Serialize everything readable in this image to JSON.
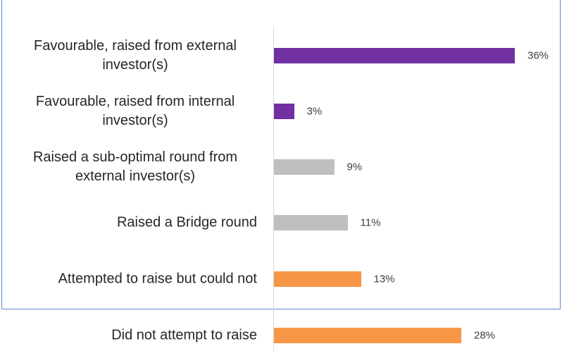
{
  "chart_data": {
    "type": "bar",
    "orientation": "horizontal",
    "categories": [
      "Favourable, raised from external investor(s)",
      "Favourable, raised from internal investor(s)",
      "Raised a sub-optimal round from external investor(s)",
      "Raised a Bridge round",
      "Attempted to raise but could not",
      "Did not attempt to raise"
    ],
    "values": [
      36,
      3,
      9,
      11,
      13,
      28
    ],
    "value_labels": [
      "36%",
      "3%",
      "9%",
      "11%",
      "13%",
      "28%"
    ],
    "colors": [
      "#7030a0",
      "#7030a0",
      "#bfbfbf",
      "#bfbfbf",
      "#f79646",
      "#f79646"
    ],
    "xlim": [
      0,
      40
    ]
  }
}
